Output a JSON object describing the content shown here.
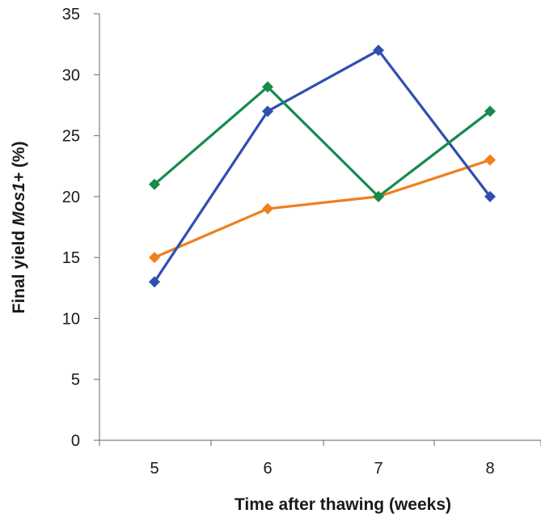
{
  "chart_data": {
    "type": "line",
    "title": "",
    "xlabel": "Time after thawing (weeks)",
    "ylabel_parts": {
      "prefix": "Final yield ",
      "italic": "Mos1+",
      "suffix": " (%)"
    },
    "x": [
      5,
      6,
      7,
      8
    ],
    "x_tick_labels": [
      "5",
      "6",
      "7",
      "8"
    ],
    "ylim": [
      0,
      35
    ],
    "y_ticks": [
      0,
      5,
      10,
      15,
      20,
      25,
      30,
      35
    ],
    "grid": false,
    "legend": "none",
    "marker": "diamond",
    "series": [
      {
        "color": "#f07f1d",
        "values": [
          15,
          19,
          20,
          23
        ]
      },
      {
        "color": "#2e4fb0",
        "values": [
          13,
          27,
          32,
          20
        ]
      },
      {
        "color": "#188a4c",
        "values": [
          21,
          29,
          20,
          27
        ]
      }
    ]
  }
}
